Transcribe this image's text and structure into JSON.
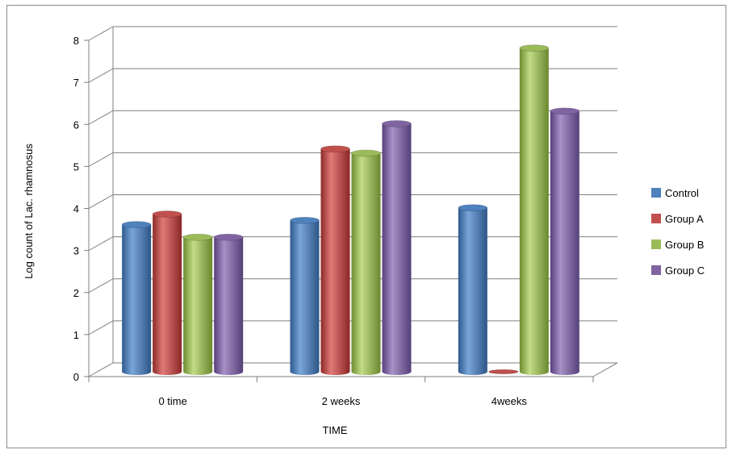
{
  "chart_data": {
    "type": "bar",
    "title": "",
    "xlabel": "TIME",
    "ylabel": "Log count of Lac. rhamnosus",
    "categories": [
      "0 time",
      "2 weeks",
      "4weeks"
    ],
    "ylim": [
      0,
      8
    ],
    "yticks": [
      "0",
      "1",
      "2",
      "3",
      "4",
      "5",
      "6",
      "7",
      "8"
    ],
    "grid": true,
    "legend_position": "right",
    "series": [
      {
        "name": "Control",
        "color": "#4f81bd",
        "values": [
          3.5,
          3.6,
          3.9
        ]
      },
      {
        "name": "Group A",
        "color": "#c0504d",
        "values": [
          3.75,
          5.3,
          0
        ]
      },
      {
        "name": "Group B",
        "color": "#9bbb59",
        "values": [
          3.2,
          5.2,
          7.7
        ]
      },
      {
        "name": "Group C",
        "color": "#8064a2",
        "values": [
          3.2,
          5.9,
          6.2
        ]
      }
    ]
  }
}
